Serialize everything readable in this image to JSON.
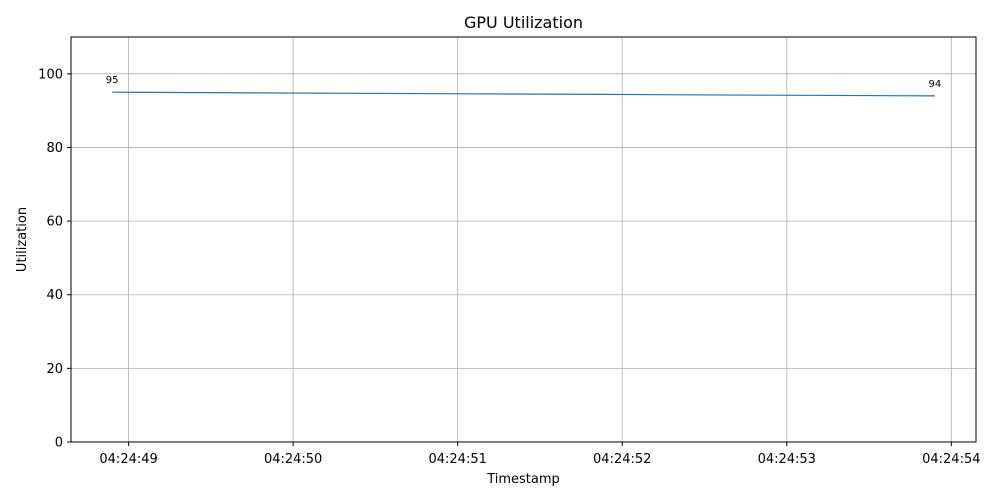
{
  "chart_data": {
    "type": "line",
    "title": "GPU Utilization",
    "xlabel": "Timestamp",
    "ylabel": "Utilization",
    "x": [
      "04:24:48.9",
      "04:24:49.9",
      "04:24:50.9",
      "04:24:51.9",
      "04:24:52.9",
      "04:24:53.9"
    ],
    "x_seconds": [
      48.9,
      49.9,
      50.9,
      51.9,
      52.9,
      53.9
    ],
    "series": [
      {
        "values": [
          95,
          94.8,
          94.6,
          94.4,
          94.2,
          94
        ],
        "color": "#1f77b4"
      }
    ],
    "xticks": [
      "04:24:49",
      "04:24:50",
      "04:24:51",
      "04:24:52",
      "04:24:53",
      "04:24:54"
    ],
    "xtick_seconds": [
      49,
      50,
      51,
      52,
      53,
      54
    ],
    "xlim": [
      48.65,
      54.15
    ],
    "yticks": [
      "0",
      "20",
      "40",
      "60",
      "80",
      "100"
    ],
    "ytick_values": [
      0,
      20,
      40,
      60,
      80,
      100
    ],
    "ylim": [
      0,
      110
    ],
    "annotations": [
      {
        "text": "95",
        "x": 48.9,
        "y": 95
      },
      {
        "text": "94",
        "x": 53.9,
        "y": 94
      }
    ],
    "grid": true,
    "grid_color": "#b0b0b0",
    "axis_color": "#000000"
  }
}
